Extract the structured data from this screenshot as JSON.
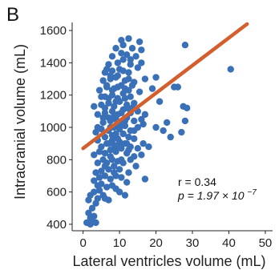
{
  "chart_data": {
    "type": "scatter",
    "panel_label": "B",
    "title": "",
    "xlabel": "Lateral ventricles volume (mL)",
    "ylabel": "Intracranial volume (mL)",
    "xlim": [
      -3,
      52
    ],
    "ylim": [
      360,
      1650
    ],
    "x_ticks": [
      0,
      10,
      20,
      30,
      40,
      50
    ],
    "y_ticks": [
      400,
      600,
      800,
      1000,
      1200,
      1400,
      1600
    ],
    "grid": false,
    "point_color": "#3a70b7",
    "line_color": "#d45f2e",
    "annotation_r": "r = 0.34",
    "annotation_p": "p = 1.97 × 10",
    "annotation_p_exp": "−7",
    "fit_line": {
      "x": [
        0,
        45
      ],
      "y": [
        870,
        1640
      ]
    },
    "points": [
      [
        1.0,
        410
      ],
      [
        2.0,
        400
      ],
      [
        2.5,
        420
      ],
      [
        3.5,
        410
      ],
      [
        2.0,
        440
      ],
      [
        3.0,
        450
      ],
      [
        1.5,
        470
      ],
      [
        2.5,
        500
      ],
      [
        3.5,
        530
      ],
      [
        1.5,
        550
      ],
      [
        4.0,
        560
      ],
      [
        2.0,
        580
      ],
      [
        3.0,
        600
      ],
      [
        4.5,
        610
      ],
      [
        5.5,
        580
      ],
      [
        6.0,
        560
      ],
      [
        7.0,
        550
      ],
      [
        4.0,
        640
      ],
      [
        5.0,
        650
      ],
      [
        6.5,
        630
      ],
      [
        8.0,
        640
      ],
      [
        9.0,
        620
      ],
      [
        10.0,
        600
      ],
      [
        11.5,
        580
      ],
      [
        3.0,
        670
      ],
      [
        4.5,
        690
      ],
      [
        6.0,
        700
      ],
      [
        7.5,
        680
      ],
      [
        9.0,
        700
      ],
      [
        10.5,
        690
      ],
      [
        12.0,
        660
      ],
      [
        3.5,
        720
      ],
      [
        5.0,
        730
      ],
      [
        7.0,
        740
      ],
      [
        8.5,
        760
      ],
      [
        10.0,
        740
      ],
      [
        12.5,
        720
      ],
      [
        17.0,
        680
      ],
      [
        4.0,
        780
      ],
      [
        5.5,
        800
      ],
      [
        6.5,
        780
      ],
      [
        8.0,
        800
      ],
      [
        9.5,
        790
      ],
      [
        11.0,
        780
      ],
      [
        13.0,
        800
      ],
      [
        14.5,
        760
      ],
      [
        3.0,
        830
      ],
      [
        4.5,
        850
      ],
      [
        6.0,
        840
      ],
      [
        7.5,
        860
      ],
      [
        9.0,
        850
      ],
      [
        10.5,
        870
      ],
      [
        12.0,
        840
      ],
      [
        14.0,
        820
      ],
      [
        16.0,
        830
      ],
      [
        5.0,
        880
      ],
      [
        7.0,
        900
      ],
      [
        8.5,
        890
      ],
      [
        10.0,
        910
      ],
      [
        11.5,
        900
      ],
      [
        13.0,
        880
      ],
      [
        15.0,
        870
      ],
      [
        4.0,
        920
      ],
      [
        6.0,
        940
      ],
      [
        8.0,
        950
      ],
      [
        9.5,
        930
      ],
      [
        11.0,
        960
      ],
      [
        12.5,
        940
      ],
      [
        14.0,
        930
      ],
      [
        16.5,
        900
      ],
      [
        18.0,
        880
      ],
      [
        3.5,
        970
      ],
      [
        5.0,
        990
      ],
      [
        7.0,
        980
      ],
      [
        8.5,
        1000
      ],
      [
        10.0,
        990
      ],
      [
        11.5,
        1010
      ],
      [
        13.0,
        980
      ],
      [
        15.0,
        1000
      ],
      [
        20.0,
        1000
      ],
      [
        5.5,
        1030
      ],
      [
        7.5,
        1040
      ],
      [
        9.0,
        1050
      ],
      [
        10.5,
        1030
      ],
      [
        12.0,
        1060
      ],
      [
        14.0,
        1040
      ],
      [
        16.0,
        1050
      ],
      [
        4.0,
        1080
      ],
      [
        6.0,
        1090
      ],
      [
        8.0,
        1100
      ],
      [
        9.5,
        1080
      ],
      [
        11.0,
        1110
      ],
      [
        13.0,
        1090
      ],
      [
        15.0,
        1100
      ],
      [
        17.0,
        1080
      ],
      [
        23.0,
        1030
      ],
      [
        3.0,
        1130
      ],
      [
        5.0,
        1140
      ],
      [
        7.0,
        1150
      ],
      [
        8.5,
        1130
      ],
      [
        10.0,
        1160
      ],
      [
        12.0,
        1140
      ],
      [
        14.0,
        1150
      ],
      [
        6.0,
        1190
      ],
      [
        8.0,
        1200
      ],
      [
        9.5,
        1180
      ],
      [
        11.0,
        1210
      ],
      [
        13.0,
        1190
      ],
      [
        4.5,
        1230
      ],
      [
        6.5,
        1250
      ],
      [
        8.5,
        1240
      ],
      [
        10.5,
        1260
      ],
      [
        12.5,
        1230
      ],
      [
        15.5,
        1220
      ],
      [
        19.0,
        1240
      ],
      [
        5.5,
        1290
      ],
      [
        7.5,
        1300
      ],
      [
        9.0,
        1310
      ],
      [
        11.5,
        1290
      ],
      [
        14.0,
        1280
      ],
      [
        17.0,
        1300
      ],
      [
        20.0,
        1310
      ],
      [
        6.0,
        1340
      ],
      [
        8.0,
        1350
      ],
      [
        10.0,
        1360
      ],
      [
        12.5,
        1340
      ],
      [
        15.0,
        1370
      ],
      [
        7.0,
        1390
      ],
      [
        9.5,
        1400
      ],
      [
        11.0,
        1420
      ],
      [
        13.0,
        1390
      ],
      [
        16.0,
        1400
      ],
      [
        8.0,
        1440
      ],
      [
        10.5,
        1460
      ],
      [
        12.0,
        1450
      ],
      [
        14.5,
        1440
      ],
      [
        9.0,
        1490
      ],
      [
        11.0,
        1510
      ],
      [
        13.5,
        1490
      ],
      [
        16.0,
        1480
      ],
      [
        10.5,
        1540
      ],
      [
        12.5,
        1550
      ],
      [
        15.5,
        1530
      ],
      [
        6.5,
        1360
      ],
      [
        7.5,
        1320
      ],
      [
        9.5,
        1250
      ],
      [
        11.5,
        1180
      ],
      [
        13.5,
        1120
      ],
      [
        8.5,
        1070
      ],
      [
        10.0,
        1020
      ],
      [
        11.0,
        960
      ],
      [
        12.0,
        900
      ],
      [
        9.0,
        860
      ],
      [
        7.5,
        820
      ],
      [
        6.0,
        760
      ],
      [
        8.5,
        720
      ],
      [
        10.5,
        800
      ],
      [
        12.5,
        860
      ],
      [
        14.0,
        980
      ],
      [
        16.5,
        1020
      ],
      [
        5.0,
        1190
      ],
      [
        6.5,
        1260
      ],
      [
        8.0,
        1230
      ],
      [
        9.0,
        1160
      ],
      [
        10.5,
        1090
      ],
      [
        11.5,
        1040
      ],
      [
        12.0,
        1120
      ],
      [
        13.5,
        1260
      ],
      [
        7.0,
        1060
      ],
      [
        9.0,
        960
      ],
      [
        10.0,
        880
      ],
      [
        8.0,
        920
      ],
      [
        6.5,
        900
      ],
      [
        7.0,
        1180
      ],
      [
        9.5,
        1320
      ],
      [
        11.0,
        1350
      ],
      [
        12.5,
        1300
      ],
      [
        4.0,
        1000
      ],
      [
        5.5,
        1060
      ],
      [
        6.0,
        1120
      ],
      [
        7.5,
        1000
      ],
      [
        11.5,
        1240
      ],
      [
        13.0,
        1420
      ],
      [
        21.0,
        1160
      ],
      [
        22.0,
        980
      ],
      [
        24.0,
        940
      ],
      [
        25.0,
        1250
      ],
      [
        26.0,
        1250
      ],
      [
        27.5,
        1130
      ],
      [
        28.0,
        1040
      ],
      [
        27.0,
        970
      ],
      [
        28.5,
        1120
      ],
      [
        28.0,
        1510
      ],
      [
        40.5,
        1360
      ]
    ]
  }
}
